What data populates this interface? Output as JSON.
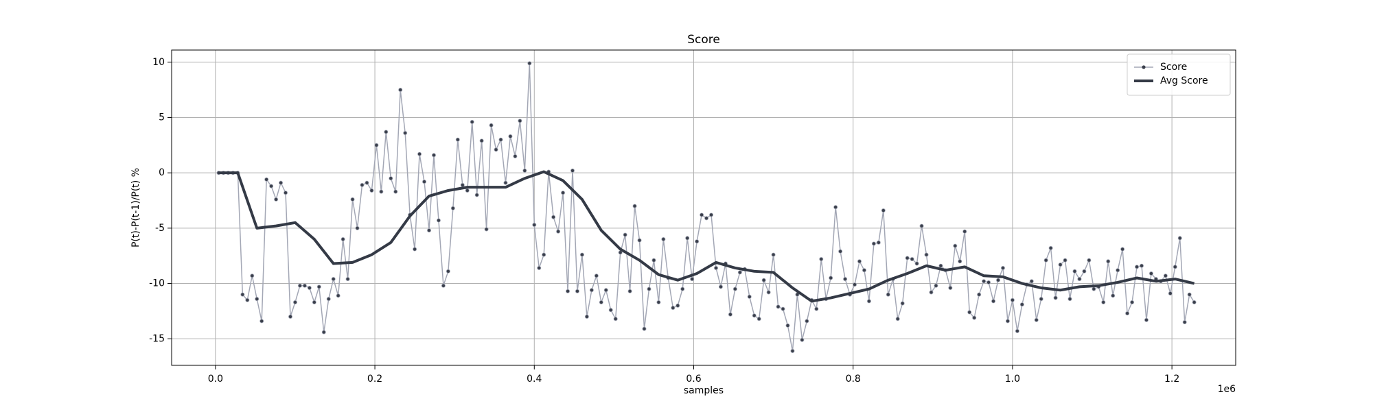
{
  "chart_data": {
    "type": "line",
    "title": "Score",
    "xlabel": "samples",
    "ylabel": "P(t)-P(t-1)/P(t) %",
    "x_offset_label": "1e6",
    "xlim": [
      -55000,
      1280000
    ],
    "ylim": [
      -17.4,
      11.1
    ],
    "xticks": [
      {
        "value": 0,
        "label": "0.0"
      },
      {
        "value": 200000,
        "label": "0.2"
      },
      {
        "value": 400000,
        "label": "0.4"
      },
      {
        "value": 600000,
        "label": "0.6"
      },
      {
        "value": 800000,
        "label": "0.8"
      },
      {
        "value": 1000000,
        "label": "1.0"
      },
      {
        "value": 1200000,
        "label": "1.2"
      }
    ],
    "yticks": [
      -15,
      -10,
      -5,
      0,
      5,
      10
    ],
    "grid": true,
    "legend": "upper right",
    "series": [
      {
        "name": "Score",
        "color": "#a3a7b5",
        "marker_color": "#3a3f4b",
        "marker": "o",
        "linewidth": 1.5,
        "x": [
          4000,
          10000,
          16000,
          22000,
          28000,
          34000,
          40000,
          46000,
          52000,
          58000,
          64000,
          70000,
          76000,
          82000,
          88000,
          94000,
          100000,
          106000,
          112000,
          118000,
          124000,
          130000,
          136000,
          142000,
          148000,
          154000,
          160000,
          166000,
          172000,
          178000,
          184000,
          190000,
          196000,
          202000,
          208000,
          214000,
          220000,
          226000,
          232000,
          238000,
          244000,
          250000,
          256000,
          262000,
          268000,
          274000,
          280000,
          286000,
          292000,
          298000,
          304000,
          310000,
          316000,
          322000,
          328000,
          334000,
          340000,
          346000,
          352000,
          358000,
          364000,
          370000,
          376000,
          382000,
          388000,
          394000,
          400000,
          406000,
          412000,
          418000,
          424000,
          430000,
          436000,
          442000,
          448000,
          454000,
          460000,
          466000,
          472000,
          478000,
          484000,
          490000,
          496000,
          502000,
          508000,
          514000,
          520000,
          526000,
          532000,
          538000,
          544000,
          550000,
          556000,
          562000,
          568000,
          574000,
          580000,
          586000,
          592000,
          598000,
          604000,
          610000,
          616000,
          622000,
          628000,
          634000,
          640000,
          646000,
          652000,
          658000,
          664000,
          670000,
          676000,
          682000,
          688000,
          694000,
          700000,
          706000,
          712000,
          718000,
          724000,
          730000,
          736000,
          742000,
          748000,
          754000,
          760000,
          766000,
          772000,
          778000,
          784000,
          790000,
          796000,
          802000,
          808000,
          814000,
          820000,
          826000,
          832000,
          838000,
          844000,
          850000,
          856000,
          862000,
          868000,
          874000,
          880000,
          886000,
          892000,
          898000,
          904000,
          910000,
          916000,
          922000,
          928000,
          934000,
          940000,
          946000,
          952000,
          958000,
          964000,
          970000,
          976000,
          982000,
          988000,
          994000,
          1000000,
          1006000,
          1012000,
          1018000,
          1024000,
          1030000,
          1036000,
          1042000,
          1048000,
          1054000,
          1060000,
          1066000,
          1072000,
          1078000,
          1084000,
          1090000,
          1096000,
          1102000,
          1108000,
          1114000,
          1120000,
          1126000,
          1132000,
          1138000,
          1144000,
          1150000,
          1156000,
          1162000,
          1168000,
          1174000,
          1180000,
          1186000,
          1192000,
          1198000,
          1204000,
          1210000,
          1216000,
          1222000,
          1228000
        ],
        "values": [
          0,
          0,
          0,
          0,
          0,
          -11,
          -11.5,
          -9.3,
          -11.4,
          -13.4,
          -0.6,
          -1.2,
          -2.4,
          -0.9,
          -1.8,
          -13,
          -11.7,
          -10.2,
          -10.2,
          -10.4,
          -11.7,
          -10.3,
          -14.4,
          -11.4,
          -9.6,
          -11.1,
          -6,
          -9.6,
          -2.4,
          -5,
          -1.1,
          -0.9,
          -1.6,
          2.5,
          -1.7,
          3.7,
          -0.5,
          -1.7,
          7.5,
          3.6,
          -3.8,
          -6.9,
          1.7,
          -0.8,
          -5.2,
          1.6,
          -4.3,
          -10.2,
          -8.9,
          -3.2,
          3,
          -1.1,
          -1.6,
          4.6,
          -2,
          2.9,
          -5.1,
          4.3,
          2.1,
          3,
          -0.9,
          3.3,
          1.5,
          4.7,
          0.2,
          9.9,
          -4.7,
          -8.6,
          -7.4,
          0.1,
          -4,
          -5.3,
          -1.8,
          -10.7,
          0.2,
          -10.7,
          -7.4,
          -13,
          -10.6,
          -9.3,
          -11.7,
          -10.6,
          -12.4,
          -13.2,
          -7.2,
          -5.6,
          -10.7,
          -3,
          -6.1,
          -14.1,
          -10.5,
          -7.9,
          -11.7,
          -6,
          -9.5,
          -12.2,
          -12,
          -10.5,
          -5.9,
          -9.6,
          -6.2,
          -3.8,
          -4.1,
          -3.8,
          -8.6,
          -10.3,
          -8.2,
          -12.8,
          -10.5,
          -9,
          -8.7,
          -11.2,
          -12.9,
          -13.2,
          -9.7,
          -10.8,
          -7.4,
          -12.1,
          -12.3,
          -13.8,
          -16.1,
          -11,
          -15.1,
          -13.4,
          -11.5,
          -12.3,
          -7.8,
          -11.4,
          -9.5,
          -3.1,
          -7.1,
          -9.6,
          -11,
          -10.1,
          -8,
          -8.8,
          -11.6,
          -6.4,
          -6.3,
          -3.4,
          -11,
          -9.6,
          -13.2,
          -11.8,
          -7.7,
          -7.8,
          -8.2,
          -4.8,
          -7.4,
          -10.8,
          -10.2,
          -8.4,
          -8.8,
          -10.4,
          -6.6,
          -8,
          -5.3,
          -12.6,
          -13.1,
          -11,
          -9.8,
          -9.9,
          -11.6,
          -9.7,
          -8.6,
          -13.4,
          -11.5,
          -14.3,
          -11.9,
          -10.1,
          -9.8,
          -13.3,
          -11.4,
          -7.9,
          -6.8,
          -11.3,
          -8.3,
          -7.9,
          -11.4,
          -8.9,
          -9.6,
          -8.9,
          -7.9,
          -10.5,
          -10.3,
          -11.7,
          -8,
          -11.1,
          -8.8,
          -6.9,
          -12.7,
          -11.7,
          -8.5,
          -8.4,
          -13.3,
          -9.1,
          -9.6,
          -9.8,
          -9.3,
          -10.9,
          -8.5,
          -5.9,
          -13.5,
          -11,
          -11.7
        ]
      },
      {
        "name": "Avg Score",
        "color": "#343a46",
        "linewidth": 4,
        "x": [
          4000,
          28000,
          52000,
          76000,
          100000,
          124000,
          148000,
          172000,
          196000,
          220000,
          244000,
          268000,
          292000,
          316000,
          340000,
          364000,
          388000,
          412000,
          436000,
          460000,
          484000,
          508000,
          532000,
          556000,
          580000,
          604000,
          628000,
          652000,
          676000,
          700000,
          724000,
          748000,
          772000,
          796000,
          820000,
          844000,
          868000,
          892000,
          916000,
          940000,
          964000,
          988000,
          1012000,
          1036000,
          1060000,
          1084000,
          1108000,
          1132000,
          1156000,
          1180000,
          1204000,
          1228000
        ],
        "values": [
          0,
          0,
          -5,
          -4.8,
          -4.5,
          -6,
          -8.2,
          -8.1,
          -7.4,
          -6.3,
          -3.9,
          -2.1,
          -1.6,
          -1.3,
          -1.3,
          -1.3,
          -0.5,
          0.1,
          -0.7,
          -2.4,
          -5.2,
          -6.9,
          -7.9,
          -9.2,
          -9.7,
          -9.1,
          -8.1,
          -8.6,
          -8.9,
          -9,
          -10.4,
          -11.6,
          -11.3,
          -10.9,
          -10.5,
          -9.7,
          -9.1,
          -8.4,
          -8.8,
          -8.5,
          -9.3,
          -9.4,
          -10,
          -10.4,
          -10.6,
          -10.3,
          -10.2,
          -9.9,
          -9.5,
          -9.8,
          -9.6,
          -10
        ]
      }
    ]
  }
}
